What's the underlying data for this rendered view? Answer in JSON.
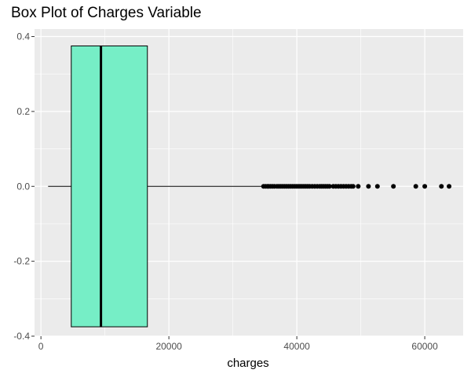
{
  "chart_data": {
    "type": "boxplot",
    "title": "Box Plot of Charges Variable",
    "xlabel": "charges",
    "ylabel": "",
    "xlim": [
      -1000,
      66000
    ],
    "ylim": [
      -0.4,
      0.42
    ],
    "x_ticks": [
      0,
      20000,
      40000,
      60000
    ],
    "x_tick_labels": [
      "0",
      "20000",
      "40000",
      "60000"
    ],
    "y_ticks": [
      -0.4,
      -0.2,
      0.0,
      0.2,
      0.4
    ],
    "y_tick_labels": [
      "-0.4",
      "-0.2",
      "0.0",
      "0.2",
      "0.4"
    ],
    "box": {
      "min": 1122,
      "q1": 4740,
      "median": 9382,
      "q3": 16640,
      "whisker_high": 34500,
      "y_center": 0.0,
      "y_bottom": -0.375,
      "y_top": 0.375,
      "fill": "#76EEC6",
      "stroke": "#000000"
    },
    "outliers": [
      34800,
      35100,
      35400,
      35600,
      35900,
      36200,
      36500,
      36900,
      37200,
      37500,
      37800,
      38100,
      38400,
      38700,
      39000,
      39300,
      39600,
      39900,
      40200,
      40500,
      40800,
      41100,
      41400,
      41700,
      42000,
      42400,
      42800,
      43200,
      43600,
      43900,
      44200,
      44500,
      44800,
      45100,
      45700,
      46100,
      46500,
      46900,
      47300,
      47700,
      48100,
      48500,
      48800,
      49600,
      51200,
      52600,
      55100,
      58600,
      60000,
      62600,
      63800
    ],
    "grid": true,
    "legend": "none",
    "panel_background": "#EBEBEB",
    "grid_color": "#FFFFFF"
  }
}
